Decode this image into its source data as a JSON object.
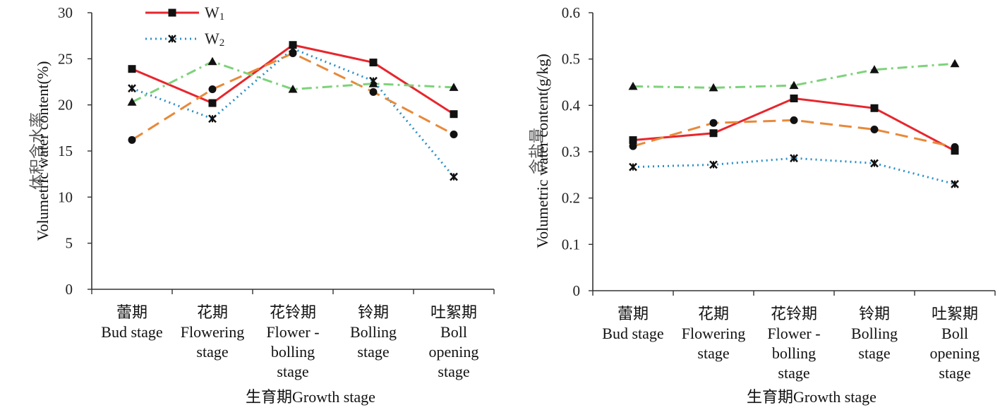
{
  "chart_data": [
    {
      "type": "line",
      "title": "",
      "xlabel": "生育期Growth stage",
      "ylabel_cn": "体积含水率",
      "ylabel_en": "Volumetric water content(%)",
      "ylim": [
        0,
        30
      ],
      "yticks": [
        "0",
        "5",
        "10",
        "15",
        "20",
        "25",
        "30"
      ],
      "categories": [
        {
          "cn": "蕾期",
          "en": [
            "Bud stage"
          ]
        },
        {
          "cn": "花期",
          "en": [
            "Flowering",
            "stage"
          ]
        },
        {
          "cn": "花铃期",
          "en": [
            "Flower -",
            "bolling",
            "stage"
          ]
        },
        {
          "cn": "铃期",
          "en": [
            "Bolling",
            "stage"
          ]
        },
        {
          "cn": "吐絮期",
          "en": [
            "Boll",
            "opening",
            "stage"
          ]
        }
      ],
      "legend_position": "top-left",
      "series": [
        {
          "name": "W1",
          "color": "#e8262d",
          "marker": "square",
          "dash": "solid",
          "values": [
            23.9,
            20.2,
            26.5,
            24.6,
            19.0
          ]
        },
        {
          "name": "W2",
          "color": "#2b8fc6",
          "marker": "x",
          "dash": "dotted",
          "values": [
            21.8,
            18.5,
            26.1,
            22.6,
            12.2
          ]
        },
        {
          "name": "",
          "color": "#e8893a",
          "marker": "circle",
          "dash": "long-dash",
          "values": [
            16.2,
            21.7,
            25.6,
            21.4,
            16.8
          ]
        },
        {
          "name": "",
          "color": "#7ed27b",
          "marker": "triangle",
          "dash": "dash-dot",
          "values": [
            20.3,
            24.7,
            21.7,
            22.3,
            21.9
          ]
        }
      ]
    },
    {
      "type": "line",
      "title": "",
      "xlabel": "生育期Growth stage",
      "ylabel_cn": "含盐量",
      "ylabel_en": "Volumetric water content(g/kg)",
      "ylim": [
        0,
        0.6
      ],
      "yticks": [
        "0",
        "0.1",
        "0.2",
        "0.3",
        "0.4",
        "0.5",
        "0.6"
      ],
      "categories": [
        {
          "cn": "蕾期",
          "en": [
            "Bud stage"
          ]
        },
        {
          "cn": "花期",
          "en": [
            "Flowering",
            "stage"
          ]
        },
        {
          "cn": "花铃期",
          "en": [
            "Flower -",
            "bolling",
            "stage"
          ]
        },
        {
          "cn": "铃期",
          "en": [
            "Bolling",
            "stage"
          ]
        },
        {
          "cn": "吐絮期",
          "en": [
            "Boll",
            "opening",
            "stage"
          ]
        }
      ],
      "series": [
        {
          "name": "W1",
          "color": "#e8262d",
          "marker": "square",
          "dash": "solid",
          "values": [
            0.325,
            0.34,
            0.415,
            0.394,
            0.302
          ]
        },
        {
          "name": "W2",
          "color": "#2b8fc6",
          "marker": "x",
          "dash": "dotted",
          "values": [
            0.267,
            0.272,
            0.286,
            0.275,
            0.23
          ]
        },
        {
          "name": "",
          "color": "#e8893a",
          "marker": "circle",
          "dash": "long-dash",
          "values": [
            0.312,
            0.362,
            0.368,
            0.348,
            0.31
          ]
        },
        {
          "name": "",
          "color": "#7ed27b",
          "marker": "triangle",
          "dash": "dash-dot",
          "values": [
            0.441,
            0.438,
            0.443,
            0.477,
            0.49
          ]
        }
      ]
    }
  ],
  "legend": {
    "items": [
      {
        "label": "W",
        "sub": "1"
      },
      {
        "label": "W",
        "sub": "2"
      }
    ]
  }
}
